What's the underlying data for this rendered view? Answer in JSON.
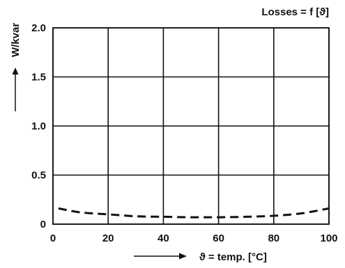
{
  "chart_data": {
    "type": "line",
    "title": "Losses = f [ϑ]",
    "xlabel": "ϑ = temp. [°C]",
    "ylabel": "W/kvar",
    "xlim": [
      0,
      100
    ],
    "ylim": [
      0,
      2.0
    ],
    "xticks": [
      0,
      20,
      40,
      60,
      80,
      100
    ],
    "xtick_labels": [
      "0",
      "20",
      "40",
      "60",
      "80",
      "100"
    ],
    "yticks": [
      0,
      0.5,
      1.0,
      1.5,
      2.0
    ],
    "ytick_labels": [
      "0",
      "0.5",
      "1.0",
      "1.5",
      "2.0"
    ],
    "grid": true,
    "series": [
      {
        "line_style": "dashed",
        "color": "#111111",
        "x": [
          2,
          10,
          20,
          30,
          40,
          50,
          60,
          70,
          80,
          90,
          100
        ],
        "y": [
          0.16,
          0.12,
          0.1,
          0.08,
          0.075,
          0.07,
          0.07,
          0.075,
          0.085,
          0.11,
          0.16
        ]
      }
    ]
  }
}
